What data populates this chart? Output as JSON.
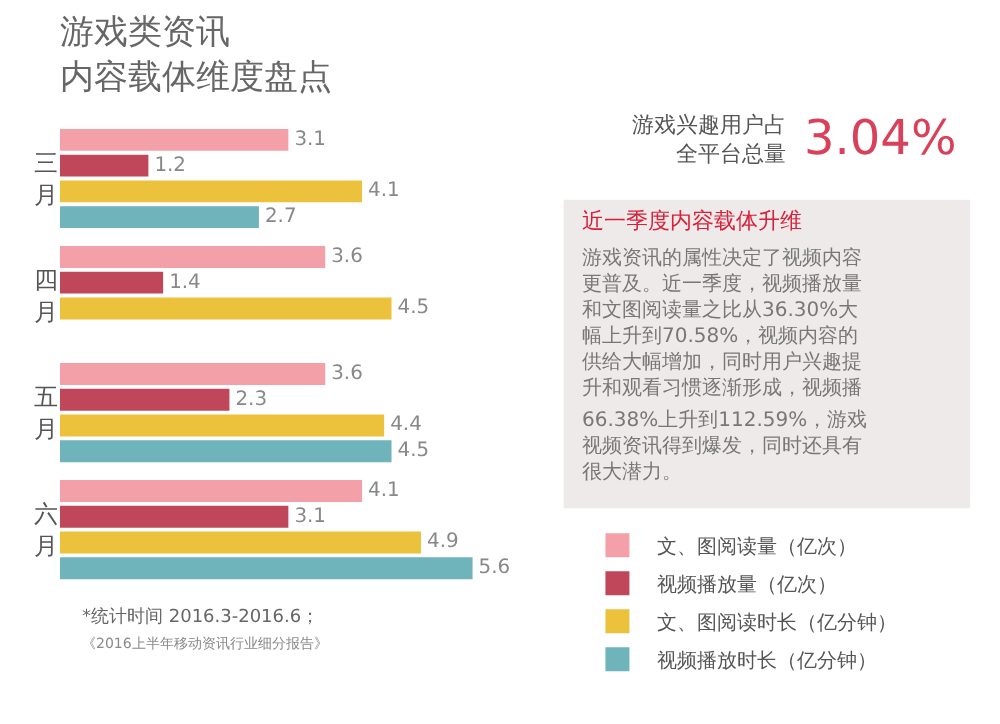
{
  "chart_data": {
    "type": "bar",
    "orientation": "horizontal",
    "title": "游戏类资讯内容载体维度盘点",
    "categories": [
      "三月",
      "四月",
      "五月",
      "六月"
    ],
    "series": [
      {
        "name": "文、图阅读量（亿次）",
        "color": "#f4a0a8",
        "values": [
          3.1,
          3.6,
          3.6,
          4.1
        ]
      },
      {
        "name": "视频播放量（亿次）",
        "color": "#c0475a",
        "values": [
          1.2,
          1.4,
          2.3,
          3.1
        ]
      },
      {
        "name": "文、图阅读时长（亿分钟）",
        "color": "#ecc13c",
        "values": [
          4.1,
          4.5,
          4.4,
          4.9
        ]
      },
      {
        "name": "视频播放时长（亿分钟）",
        "color": "#6fb4ba",
        "values": [
          2.7,
          null,
          4.5,
          5.6
        ]
      }
    ],
    "data_labels": true,
    "legend": "bottom right",
    "grid": false,
    "annotations": [
      "游戏兴趣用户占全平台总量",
      "3.04%",
      "近一季度内容载体升维",
      "游戏资讯的属性决定了视频内容更普及。近一季度，视频播放量和文图阅读量之比从36.30%大幅上升到70.58%，视频内容的供给大幅增加，同时用户兴趣提升和观看习惯逐渐形成，视频播",
      "66.38%上升到112.59%，游戏视频资讯得到爆发，同时还具有很大潜力。",
      "*统计时间 2016.3-2016.6；",
      "《2016上半年移动资讯行业细分报告》"
    ]
  }
}
